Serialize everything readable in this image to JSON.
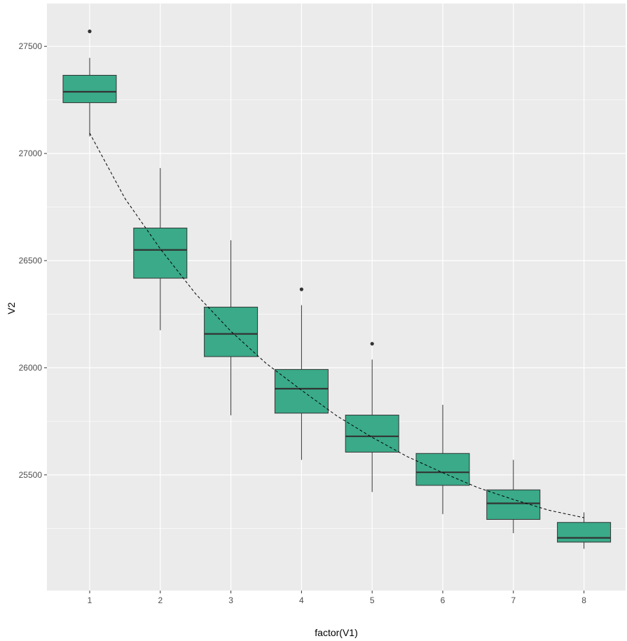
{
  "chart_data": {
    "type": "box",
    "xlabel": "factor(V1)",
    "ylabel": "V2",
    "x_ticks": [
      "1",
      "2",
      "3",
      "4",
      "5",
      "6",
      "7",
      "8"
    ],
    "y_ticks": [
      25500,
      26000,
      26500,
      27000,
      27500
    ],
    "ylim": [
      24960,
      27700
    ],
    "grid": true,
    "legend": "none",
    "colors": {
      "panel": "#ebebeb",
      "grid": "#ffffff",
      "box_fill": "#3aaa88",
      "box_stroke": "#333333",
      "outlier": "#333333",
      "trend_line": "#000000"
    },
    "boxes": [
      {
        "group": "1",
        "lower_whisker": 27080,
        "q1": 27237,
        "median": 27288,
        "q3": 27365,
        "upper_whisker": 27446,
        "outliers": [
          27570
        ]
      },
      {
        "group": "2",
        "lower_whisker": 26175,
        "q1": 26418,
        "median": 26550,
        "q3": 26652,
        "upper_whisker": 26932,
        "outliers": []
      },
      {
        "group": "3",
        "lower_whisker": 25778,
        "q1": 26052,
        "median": 26158,
        "q3": 26283,
        "upper_whisker": 26595,
        "outliers": []
      },
      {
        "group": "4",
        "lower_whisker": 25570,
        "q1": 25788,
        "median": 25902,
        "q3": 25992,
        "upper_whisker": 26292,
        "outliers": [
          26366
        ]
      },
      {
        "group": "5",
        "lower_whisker": 25420,
        "q1": 25606,
        "median": 25680,
        "q3": 25779,
        "upper_whisker": 26038,
        "outliers": [
          26112
        ]
      },
      {
        "group": "6",
        "lower_whisker": 25317,
        "q1": 25451,
        "median": 25512,
        "q3": 25600,
        "upper_whisker": 25827,
        "outliers": []
      },
      {
        "group": "7",
        "lower_whisker": 25228,
        "q1": 25292,
        "median": 25367,
        "q3": 25430,
        "upper_whisker": 25570,
        "outliers": []
      },
      {
        "group": "8",
        "lower_whisker": 25155,
        "q1": 25186,
        "median": 25206,
        "q3": 25278,
        "upper_whisker": 25325,
        "outliers": []
      }
    ],
    "trend_line": {
      "style": "dashed",
      "x": [
        1,
        1.5,
        2,
        2.5,
        3,
        3.5,
        4,
        4.5,
        5,
        5.5,
        6,
        6.5,
        7,
        7.5,
        8
      ],
      "y": [
        27095,
        26790,
        26555,
        26345,
        26170,
        26020,
        25895,
        25775,
        25675,
        25585,
        25510,
        25440,
        25385,
        25335,
        25300
      ]
    }
  }
}
